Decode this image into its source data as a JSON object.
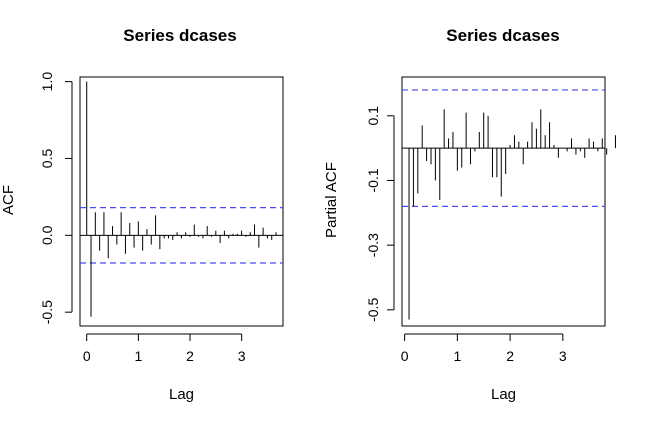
{
  "chart_data": [
    {
      "type": "bar",
      "title": "Series  dcases",
      "xlabel": "Lag",
      "ylabel": "ACF",
      "xlim": [
        -0.13,
        3.8
      ],
      "ylim": [
        -0.59,
        1.03
      ],
      "xticks": [
        0,
        1,
        2,
        3
      ],
      "xtick_labels": [
        "0",
        "1",
        "2",
        "3"
      ],
      "yticks": [
        -0.5,
        0.0,
        0.5,
        1.0
      ],
      "ytick_labels": [
        "-0.5",
        "0.0",
        "0.5",
        "1.0"
      ],
      "confidence_band": [
        -0.18,
        0.18
      ],
      "zero_line": true,
      "lag_step": 0.0833,
      "values": [
        1.0,
        -0.53,
        0.15,
        -0.1,
        0.15,
        -0.15,
        0.06,
        -0.06,
        0.15,
        -0.12,
        0.08,
        -0.08,
        0.09,
        -0.1,
        0.04,
        -0.06,
        0.13,
        -0.09,
        -0.02,
        -0.02,
        -0.03,
        0.02,
        -0.02,
        0.02,
        -0.01,
        0.07,
        -0.01,
        -0.02,
        0.06,
        -0.01,
        0.03,
        -0.05,
        0.03,
        -0.02,
        0.01,
        0.01,
        0.03,
        -0.01,
        0.02,
        0.07,
        -0.08,
        0.05,
        -0.02,
        -0.03,
        0.02
      ]
    },
    {
      "type": "bar",
      "title": "Series  dcases",
      "xlabel": "Lag",
      "ylabel": "Partial ACF",
      "xlim": [
        -0.05,
        3.8
      ],
      "ylim": [
        -0.55,
        0.22
      ],
      "xticks": [
        0,
        1,
        2,
        3
      ],
      "xtick_labels": [
        "0",
        "1",
        "2",
        "3"
      ],
      "yticks": [
        -0.5,
        -0.3,
        -0.1,
        0.1
      ],
      "ytick_labels": [
        "-0.5",
        "-0.3",
        "-0.1",
        "0.1"
      ],
      "confidence_band": [
        -0.18,
        0.18
      ],
      "zero_line": true,
      "lag_step": 0.0833,
      "values": [
        -0.53,
        -0.18,
        -0.14,
        0.07,
        -0.04,
        -0.05,
        -0.1,
        -0.16,
        0.12,
        0.03,
        0.05,
        -0.07,
        -0.06,
        0.11,
        -0.05,
        -0.01,
        0.05,
        0.11,
        0.1,
        -0.09,
        -0.09,
        -0.15,
        -0.08,
        0.01,
        0.04,
        0.02,
        -0.05,
        0.02,
        0.08,
        0.06,
        0.12,
        0.04,
        0.08,
        0.01,
        -0.03,
        0.0,
        -0.01,
        0.03,
        -0.02,
        -0.01,
        -0.03,
        0.03,
        0.02,
        -0.01,
        0.03,
        -0.02,
        0.0,
        0.04
      ]
    }
  ]
}
